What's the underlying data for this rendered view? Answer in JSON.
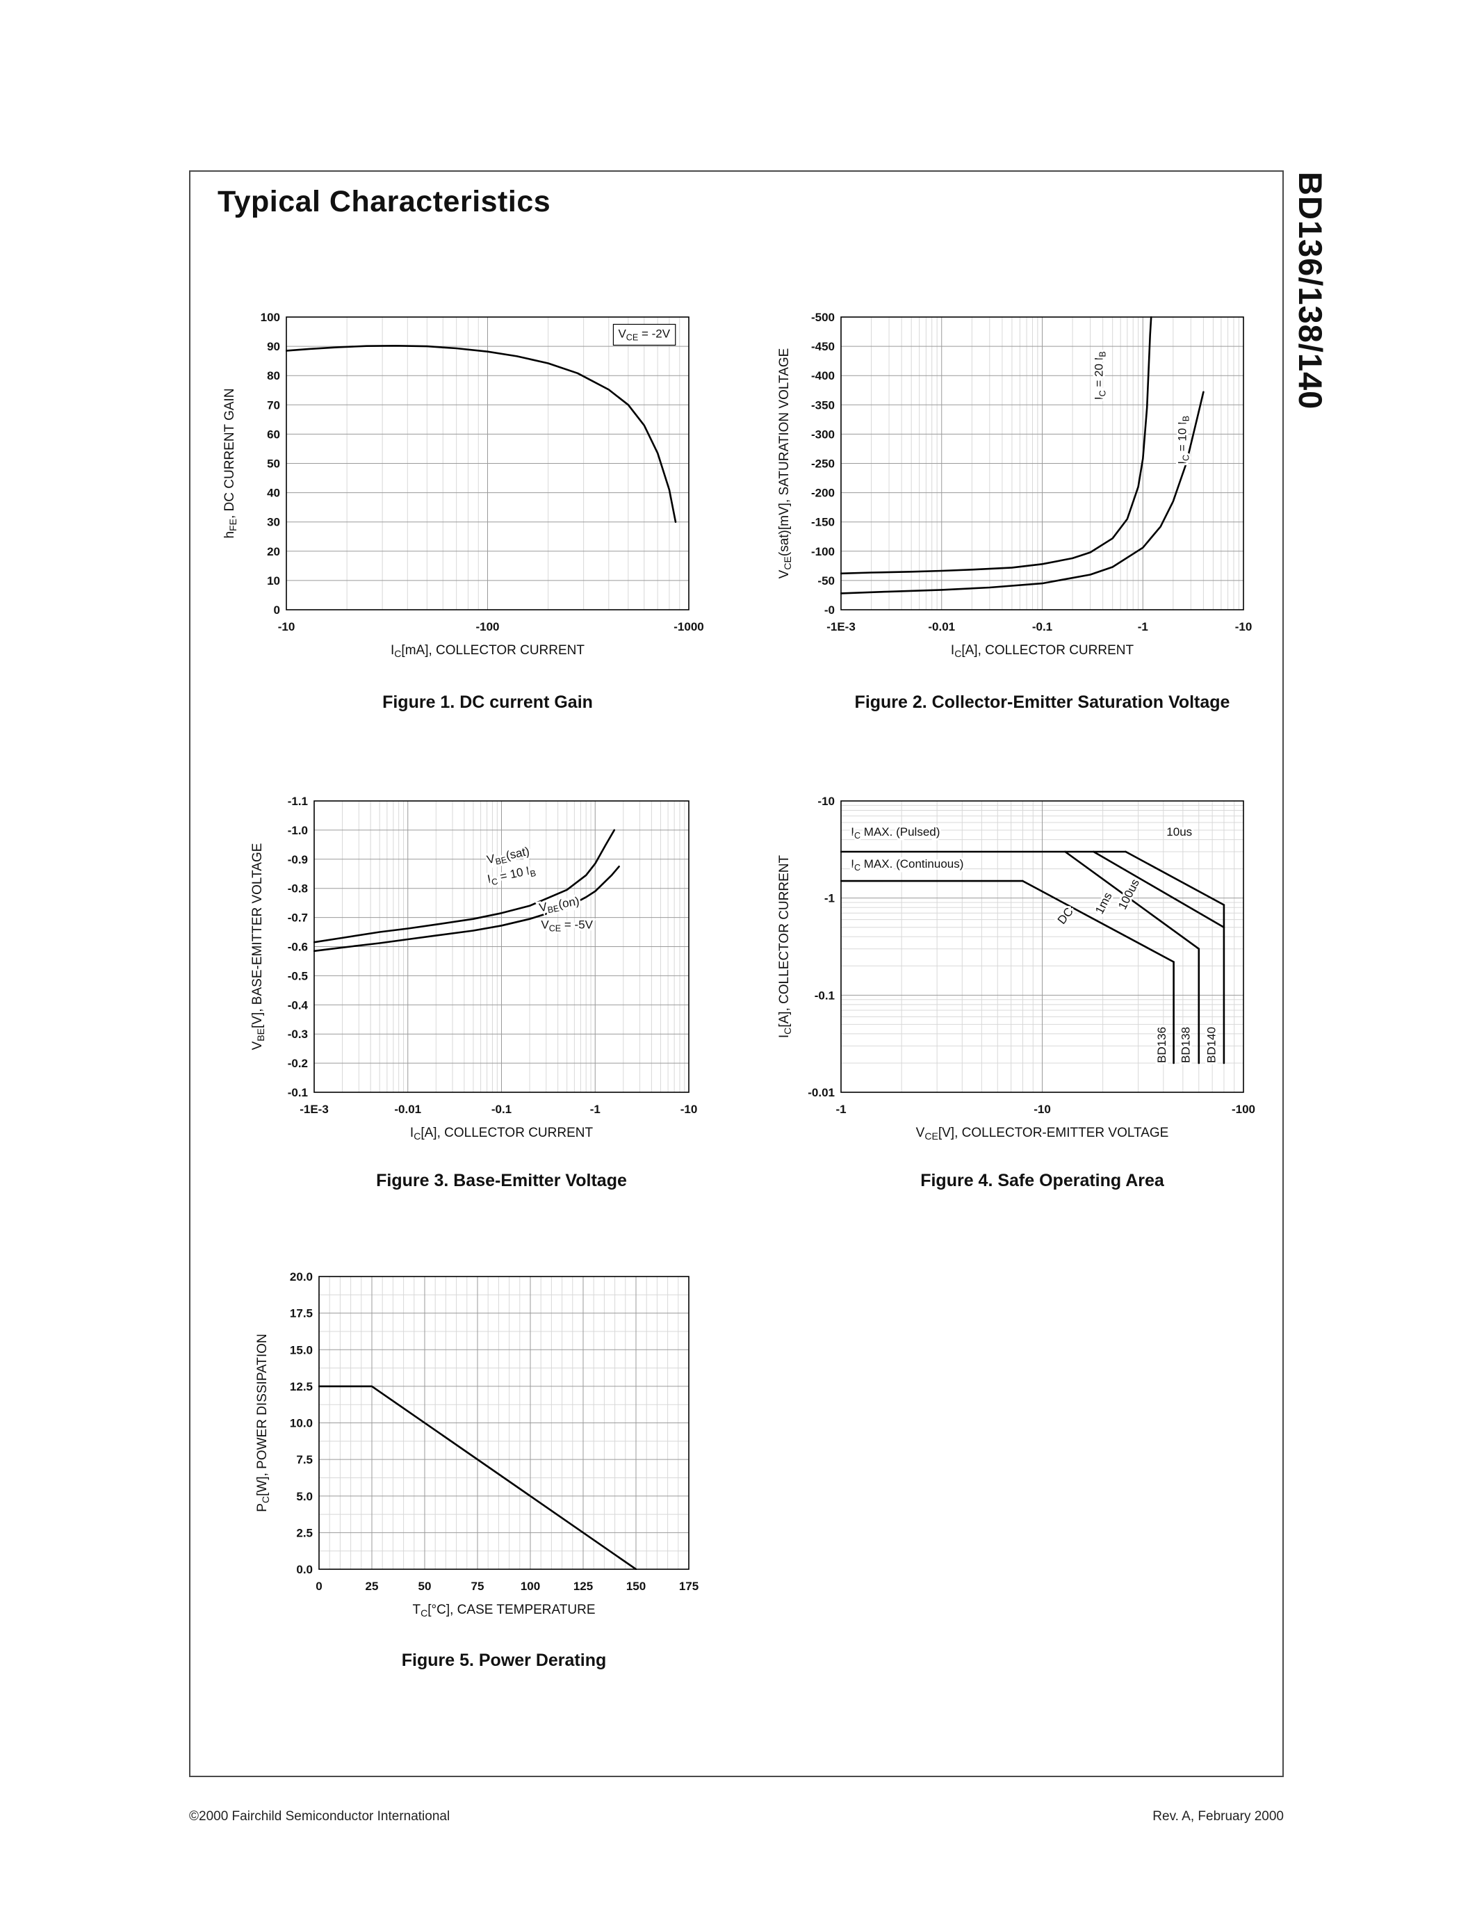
{
  "page": {
    "title": "Typical Characteristics",
    "side_title": "BD136/138/140",
    "footer_left": "©2000 Fairchild Semiconductor International",
    "footer_right": "Rev. A, February 2000"
  },
  "colors": {
    "grid_minor": "#d8d8d8",
    "grid_major": "#9a9a9a",
    "curve": "#000000",
    "border": "#000000"
  },
  "chart_data": [
    {
      "id": "dc-current-gain",
      "type": "line",
      "caption": "Figure 1. DC current Gain",
      "xlabel": "I_{C}[mA], COLLECTOR CURRENT",
      "ylabel": "h_{FE}, DC CURRENT GAIN",
      "x_axis": {
        "scale": "log",
        "min": 10,
        "max": 1000,
        "ticks": [
          10,
          100,
          1000
        ],
        "tick_labels": [
          "-10",
          "-100",
          "-1000"
        ]
      },
      "y_axis": {
        "scale": "linear",
        "min": 0,
        "max": 100,
        "ticks": [
          0,
          10,
          20,
          30,
          40,
          50,
          60,
          70,
          80,
          90,
          100
        ],
        "tick_labels": [
          "0",
          "10",
          "20",
          "30",
          "40",
          "50",
          "60",
          "70",
          "80",
          "90",
          "100"
        ]
      },
      "series": [
        {
          "name": "hFE",
          "points": [
            [
              10,
              88.5
            ],
            [
              13,
              89.1
            ],
            [
              18,
              89.7
            ],
            [
              25,
              90.1
            ],
            [
              35,
              90.2
            ],
            [
              50,
              90.0
            ],
            [
              70,
              89.3
            ],
            [
              100,
              88.2
            ],
            [
              140,
              86.6
            ],
            [
              200,
              84.2
            ],
            [
              280,
              80.8
            ],
            [
              400,
              75.2
            ],
            [
              500,
              70
            ],
            [
              600,
              63
            ],
            [
              700,
              53.5
            ],
            [
              800,
              41
            ],
            [
              860,
              30
            ]
          ]
        }
      ],
      "annotations": [
        {
          "text": "V_{CE} = -2V",
          "x": 600,
          "y": 93,
          "rotate": 0,
          "anchor": "middle",
          "box": true
        }
      ]
    },
    {
      "id": "collector-emitter-saturation-voltage",
      "type": "line",
      "caption": "Figure 2. Collector-Emitter Saturation Voltage",
      "xlabel": "I_{C}[A], COLLECTOR CURRENT",
      "ylabel": "V_{CE}(sat)[mV], SATURATION VOLTAGE",
      "x_axis": {
        "scale": "log",
        "min": 0.001,
        "max": 10,
        "ticks": [
          0.001,
          0.01,
          0.1,
          1,
          10
        ],
        "tick_labels": [
          "-1E-3",
          "-0.01",
          "-0.1",
          "-1",
          "-10"
        ]
      },
      "y_axis": {
        "scale": "linear",
        "min": 0,
        "max": 500,
        "ticks": [
          0,
          50,
          100,
          150,
          200,
          250,
          300,
          350,
          400,
          450,
          500
        ],
        "tick_labels": [
          "-0",
          "-50",
          "-100",
          "-150",
          "-200",
          "-250",
          "-300",
          "-350",
          "-400",
          "-450",
          "-500"
        ]
      },
      "series": [
        {
          "name": "IC = 20 IB",
          "points": [
            [
              0.001,
              62
            ],
            [
              0.002,
              63.5
            ],
            [
              0.005,
              65
            ],
            [
              0.01,
              66.5
            ],
            [
              0.02,
              68.5
            ],
            [
              0.05,
              72
            ],
            [
              0.1,
              78
            ],
            [
              0.2,
              88
            ],
            [
              0.3,
              98
            ],
            [
              0.5,
              122
            ],
            [
              0.7,
              155
            ],
            [
              0.9,
              210
            ],
            [
              1.0,
              258
            ],
            [
              1.1,
              345
            ],
            [
              1.18,
              470
            ],
            [
              1.21,
              500
            ]
          ]
        },
        {
          "name": "IC = 10 IB",
          "points": [
            [
              0.001,
              28
            ],
            [
              0.003,
              31
            ],
            [
              0.01,
              34
            ],
            [
              0.03,
              38
            ],
            [
              0.1,
              45
            ],
            [
              0.3,
              60
            ],
            [
              0.5,
              73
            ],
            [
              1.0,
              106
            ],
            [
              1.5,
              142
            ],
            [
              2.0,
              185
            ],
            [
              2.7,
              250
            ],
            [
              3.5,
              330
            ],
            [
              4.0,
              372
            ]
          ]
        }
      ],
      "annotations": [
        {
          "text": "I_{C} = 20 I_{B}",
          "x": 0.4,
          "y": 400,
          "rotate": -90,
          "anchor": "middle"
        },
        {
          "text": "I_{C} = 10 I_{B}",
          "x": 2.7,
          "y": 290,
          "rotate": -90,
          "anchor": "middle"
        }
      ]
    },
    {
      "id": "base-emitter-voltage",
      "type": "line",
      "caption": "Figure 3. Base-Emitter Voltage",
      "xlabel": "I_{C}[A], COLLECTOR CURRENT",
      "ylabel": "V_{BE}[V], BASE-EMITTER VOLTAGE",
      "x_axis": {
        "scale": "log",
        "min": 0.001,
        "max": 10,
        "ticks": [
          0.001,
          0.01,
          0.1,
          1,
          10
        ],
        "tick_labels": [
          "-1E-3",
          "-0.01",
          "-0.1",
          "-1",
          "-10"
        ]
      },
      "y_axis": {
        "scale": "linear",
        "min": 0.1,
        "max": 1.1,
        "ticks": [
          0.1,
          0.2,
          0.3,
          0.4,
          0.5,
          0.6,
          0.7,
          0.8,
          0.9,
          1.0,
          1.1
        ],
        "tick_labels": [
          "-0.1",
          "-0.2",
          "-0.3",
          "-0.4",
          "-0.5",
          "-0.6",
          "-0.7",
          "-0.8",
          "-0.9",
          "-1.0",
          "-1.1"
        ]
      },
      "series": [
        {
          "name": "VBE(sat) IC = 10 IB",
          "points": [
            [
              0.001,
              0.615
            ],
            [
              0.002,
              0.63
            ],
            [
              0.005,
              0.65
            ],
            [
              0.01,
              0.662
            ],
            [
              0.02,
              0.676
            ],
            [
              0.05,
              0.695
            ],
            [
              0.1,
              0.715
            ],
            [
              0.2,
              0.74
            ],
            [
              0.5,
              0.795
            ],
            [
              0.8,
              0.845
            ],
            [
              1.0,
              0.885
            ],
            [
              1.3,
              0.95
            ],
            [
              1.6,
              1.0
            ]
          ]
        },
        {
          "name": "VBE(on) VCE = -5V",
          "points": [
            [
              0.001,
              0.585
            ],
            [
              0.002,
              0.597
            ],
            [
              0.005,
              0.612
            ],
            [
              0.01,
              0.625
            ],
            [
              0.02,
              0.638
            ],
            [
              0.05,
              0.655
            ],
            [
              0.1,
              0.672
            ],
            [
              0.2,
              0.695
            ],
            [
              0.5,
              0.735
            ],
            [
              0.8,
              0.77
            ],
            [
              1.0,
              0.79
            ],
            [
              1.5,
              0.845
            ],
            [
              1.8,
              0.875
            ]
          ]
        }
      ],
      "annotations": [
        {
          "text": "V_{BE}(sat)",
          "x": 0.12,
          "y": 0.9,
          "rotate": -12,
          "anchor": "middle"
        },
        {
          "text": "I_{C} = 10 I_{B}",
          "x": 0.13,
          "y": 0.835,
          "rotate": -12,
          "anchor": "middle"
        },
        {
          "text": "V_{BE}(on)",
          "x": 0.42,
          "y": 0.732,
          "rotate": -10,
          "anchor": "middle"
        },
        {
          "text": "V_{CE} = -5V",
          "x": 0.5,
          "y": 0.662,
          "rotate": 0,
          "anchor": "middle"
        }
      ]
    },
    {
      "id": "safe-operating-area",
      "type": "line",
      "caption": "Figure 4. Safe Operating Area",
      "xlabel": "V_{CE}[V], COLLECTOR-EMITTER VOLTAGE",
      "ylabel": "I_{C}[A], COLLECTOR CURRENT",
      "x_axis": {
        "scale": "log",
        "min": 1,
        "max": 100,
        "ticks": [
          1,
          10,
          100
        ],
        "tick_labels": [
          "-1",
          "-10",
          "-100"
        ]
      },
      "y_axis": {
        "scale": "log",
        "min": 0.01,
        "max": 10,
        "ticks": [
          0.01,
          0.1,
          1,
          10
        ],
        "tick_labels": [
          "-0.01",
          "-0.1",
          "-1",
          "-10"
        ]
      },
      "series": [
        {
          "name": "IC MAX (Pulsed)",
          "points": [
            [
              1,
              3
            ],
            [
              26,
              3
            ]
          ]
        },
        {
          "name": "IC MAX (Continuous)",
          "points": [
            [
              1,
              1.5
            ],
            [
              8,
              1.5
            ]
          ]
        },
        {
          "name": "DC",
          "points": [
            [
              8,
              1.5
            ],
            [
              45,
              0.22
            ]
          ]
        },
        {
          "name": "1ms",
          "points": [
            [
              13,
              3
            ],
            [
              60,
              0.3
            ]
          ]
        },
        {
          "name": "100us",
          "points": [
            [
              18,
              3
            ],
            [
              80,
              0.5
            ]
          ]
        },
        {
          "name": "10us",
          "points": [
            [
              26,
              3
            ],
            [
              80,
              0.85
            ]
          ]
        },
        {
          "name": "BD136 limit",
          "points": [
            [
              45,
              0.22
            ],
            [
              45,
              0.02
            ]
          ]
        },
        {
          "name": "BD138 limit",
          "points": [
            [
              60,
              0.3
            ],
            [
              60,
              0.02
            ]
          ]
        },
        {
          "name": "BD140 limit",
          "points": [
            [
              80,
              0.85
            ],
            [
              80,
              0.02
            ]
          ]
        }
      ],
      "annotations": [
        {
          "text": "I_{C} MAX. (Pulsed)",
          "x": 1.12,
          "y": 4.4,
          "rotate": 0,
          "anchor": "start"
        },
        {
          "text": "I_{C} MAX. (Continuous)",
          "x": 1.12,
          "y": 2.05,
          "rotate": 0,
          "anchor": "start"
        },
        {
          "text": "10us",
          "x": 48,
          "y": 4.4,
          "rotate": 0,
          "anchor": "middle"
        },
        {
          "text": "DC",
          "x": 13.5,
          "y": 0.62,
          "rotate": -52,
          "anchor": "middle"
        },
        {
          "text": "1ms",
          "x": 21,
          "y": 0.85,
          "rotate": -63,
          "anchor": "middle"
        },
        {
          "text": "100us",
          "x": 28,
          "y": 1.05,
          "rotate": -63,
          "anchor": "middle"
        },
        {
          "text": "BD136",
          "x": 41,
          "y": 0.02,
          "rotate": -90,
          "anchor": "start"
        },
        {
          "text": "BD138",
          "x": 54,
          "y": 0.02,
          "rotate": -90,
          "anchor": "start"
        },
        {
          "text": "BD140",
          "x": 72.5,
          "y": 0.02,
          "rotate": -90,
          "anchor": "start"
        }
      ]
    },
    {
      "id": "power-derating",
      "type": "line",
      "caption": "Figure 5. Power Derating",
      "xlabel": "T_{C}[°C], CASE TEMPERATURE",
      "ylabel": "P_{C}[W], POWER DISSIPATION",
      "x_axis": {
        "scale": "linear",
        "min": 0,
        "max": 175,
        "minor_step": 5,
        "ticks": [
          0,
          25,
          50,
          75,
          100,
          125,
          150,
          175
        ],
        "tick_labels": [
          "0",
          "25",
          "50",
          "75",
          "100",
          "125",
          "150",
          "175"
        ]
      },
      "y_axis": {
        "scale": "linear",
        "min": 0,
        "max": 20,
        "minor_step": 1.25,
        "ticks": [
          0,
          2.5,
          5,
          7.5,
          10,
          12.5,
          15,
          17.5,
          20
        ],
        "tick_labels": [
          "0.0",
          "2.5",
          "5.0",
          "7.5",
          "10.0",
          "12.5",
          "15.0",
          "17.5",
          "20.0"
        ]
      },
      "series": [
        {
          "name": "PC max",
          "points": [
            [
              0,
              12.5
            ],
            [
              25,
              12.5
            ],
            [
              150,
              0
            ]
          ]
        }
      ],
      "annotations": []
    }
  ]
}
